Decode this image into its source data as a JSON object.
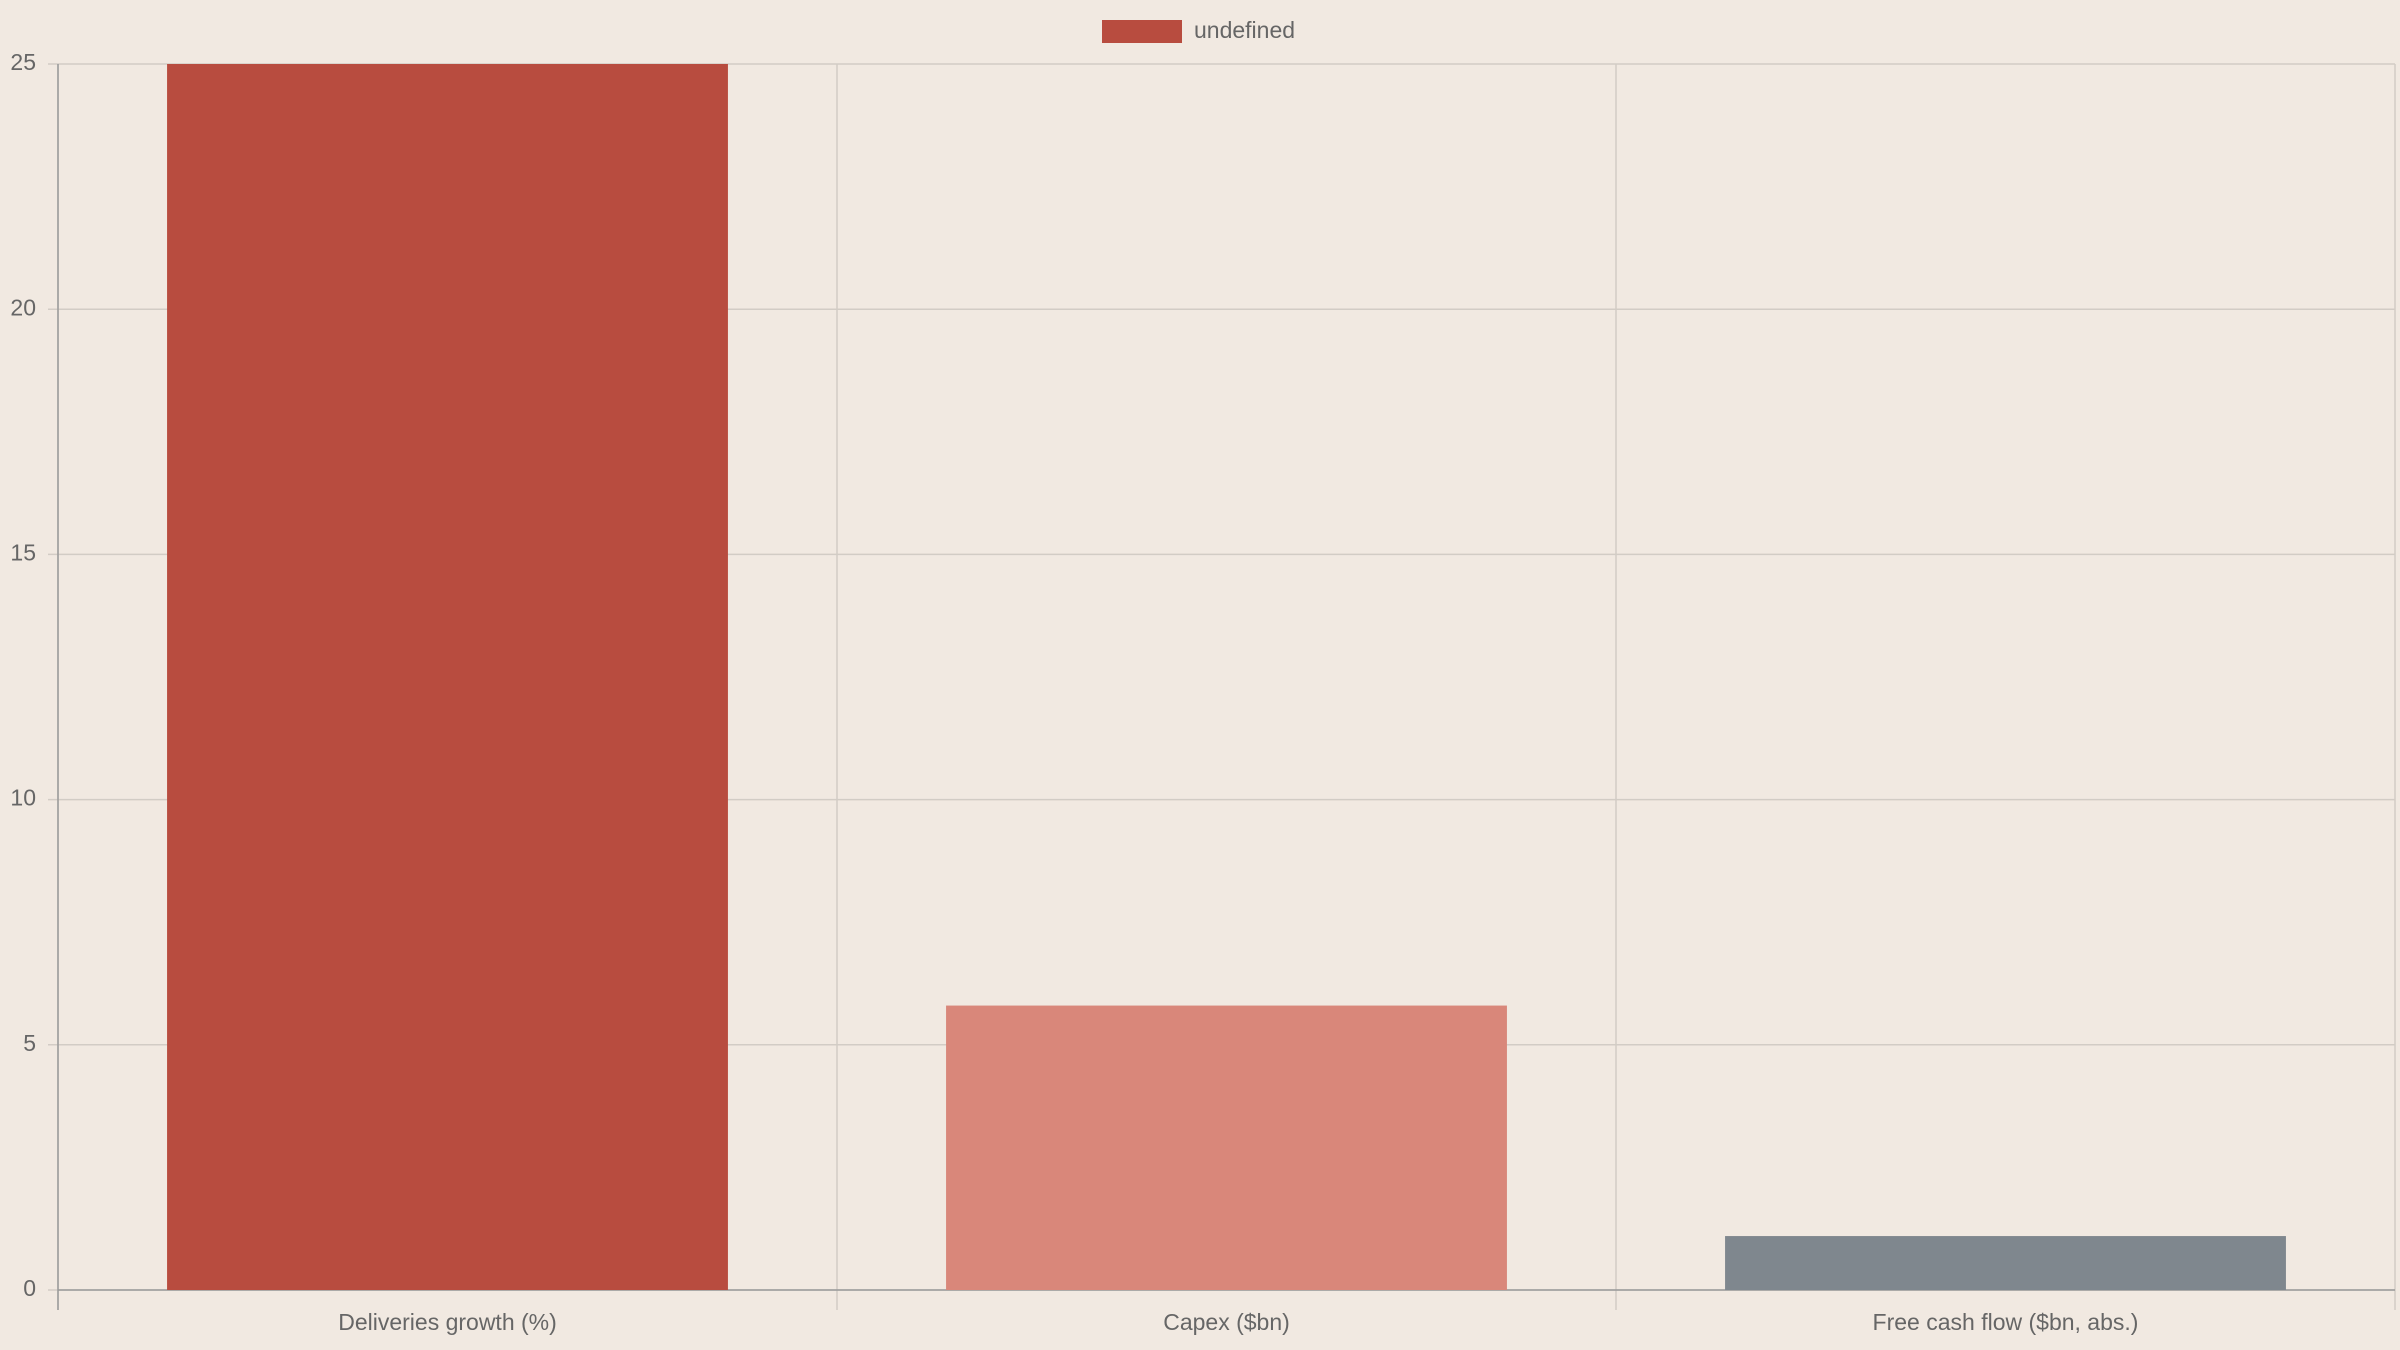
{
  "chart_data": {
    "type": "bar",
    "categories": [
      "Deliveries growth (%)",
      "Capex ($bn)",
      "Free cash flow ($bn, abs.)"
    ],
    "series": [
      {
        "name": "undefined",
        "color": "#b84c3f",
        "values": [
          25,
          5.8,
          1.1
        ],
        "colors": [
          "#b84c3f",
          "#d9877a",
          "#7f878e"
        ]
      }
    ],
    "ylim": [
      0,
      25
    ],
    "yticks": [
      0,
      5,
      10,
      15,
      20,
      25
    ],
    "grid": true,
    "legend": "top"
  }
}
